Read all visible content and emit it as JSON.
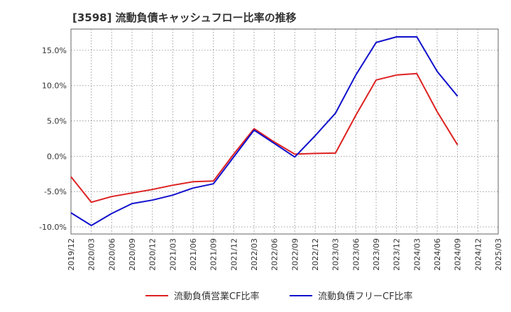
{
  "chart_data": {
    "type": "line",
    "title": "[3598]  流動負債キャッシュフロー比率の推移",
    "xlabel": "",
    "ylabel": "",
    "ylim": [
      -11,
      18
    ],
    "yticks": [
      -10,
      -5,
      0,
      5,
      10,
      15
    ],
    "ytick_labels": [
      "-10.0%",
      "-5.0%",
      "0.0%",
      "5.0%",
      "10.0%",
      "15.0%"
    ],
    "categories": [
      "2019/12",
      "2020/03",
      "2020/06",
      "2020/09",
      "2020/12",
      "2021/03",
      "2021/06",
      "2021/09",
      "2021/12",
      "2022/03",
      "2022/06",
      "2022/09",
      "2022/12",
      "2023/03",
      "2023/06",
      "2023/09",
      "2023/12",
      "2024/03",
      "2024/06",
      "2024/09",
      "2024/12",
      "2025/03"
    ],
    "grid": true,
    "legend_position": "bottom",
    "series": [
      {
        "name": "流動負債営業CF比率",
        "color": "#dd2222",
        "values": [
          -2.9,
          -6.5,
          -5.7,
          -5.2,
          -4.7,
          -4.1,
          -3.6,
          -3.5,
          0.3,
          3.9,
          2.0,
          0.3,
          0.4,
          0.45,
          5.8,
          10.8,
          11.5,
          11.7,
          6.3,
          1.6,
          null,
          null
        ]
      },
      {
        "name": "流動負債フリーCF比率",
        "color": "#1111cc",
        "values": [
          -8.0,
          -9.8,
          -8.1,
          -6.7,
          -6.2,
          -5.5,
          -4.5,
          -3.9,
          -0.1,
          3.7,
          1.8,
          -0.1,
          2.9,
          6.1,
          11.5,
          16.1,
          16.9,
          16.9,
          12.0,
          8.5,
          null,
          null
        ]
      }
    ]
  }
}
